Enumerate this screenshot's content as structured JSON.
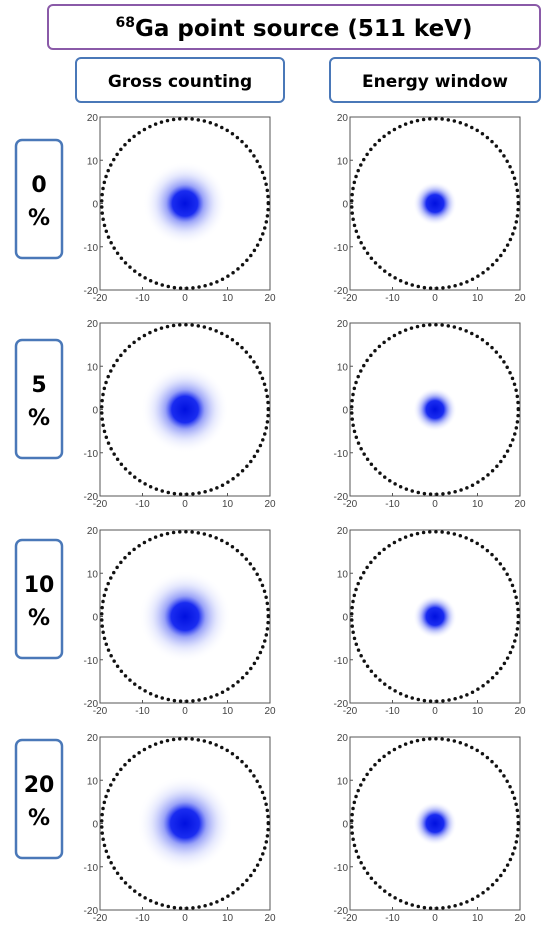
{
  "header": {
    "isotope_mass": "68",
    "title": "Ga point source (511 keV)"
  },
  "columns": [
    "Gross counting",
    "Energy window"
  ],
  "rows": [
    {
      "number": "0",
      "unit": "%"
    },
    {
      "number": "5",
      "unit": "%"
    },
    {
      "number": "10",
      "unit": "%"
    },
    {
      "number": "20",
      "unit": "%"
    }
  ],
  "axes": {
    "xlim": [
      -20,
      20
    ],
    "ylim": [
      -20,
      20
    ],
    "xticks": [
      -20,
      -10,
      0,
      10,
      20
    ],
    "yticks": [
      -20,
      -10,
      0,
      10,
      20
    ]
  }
}
